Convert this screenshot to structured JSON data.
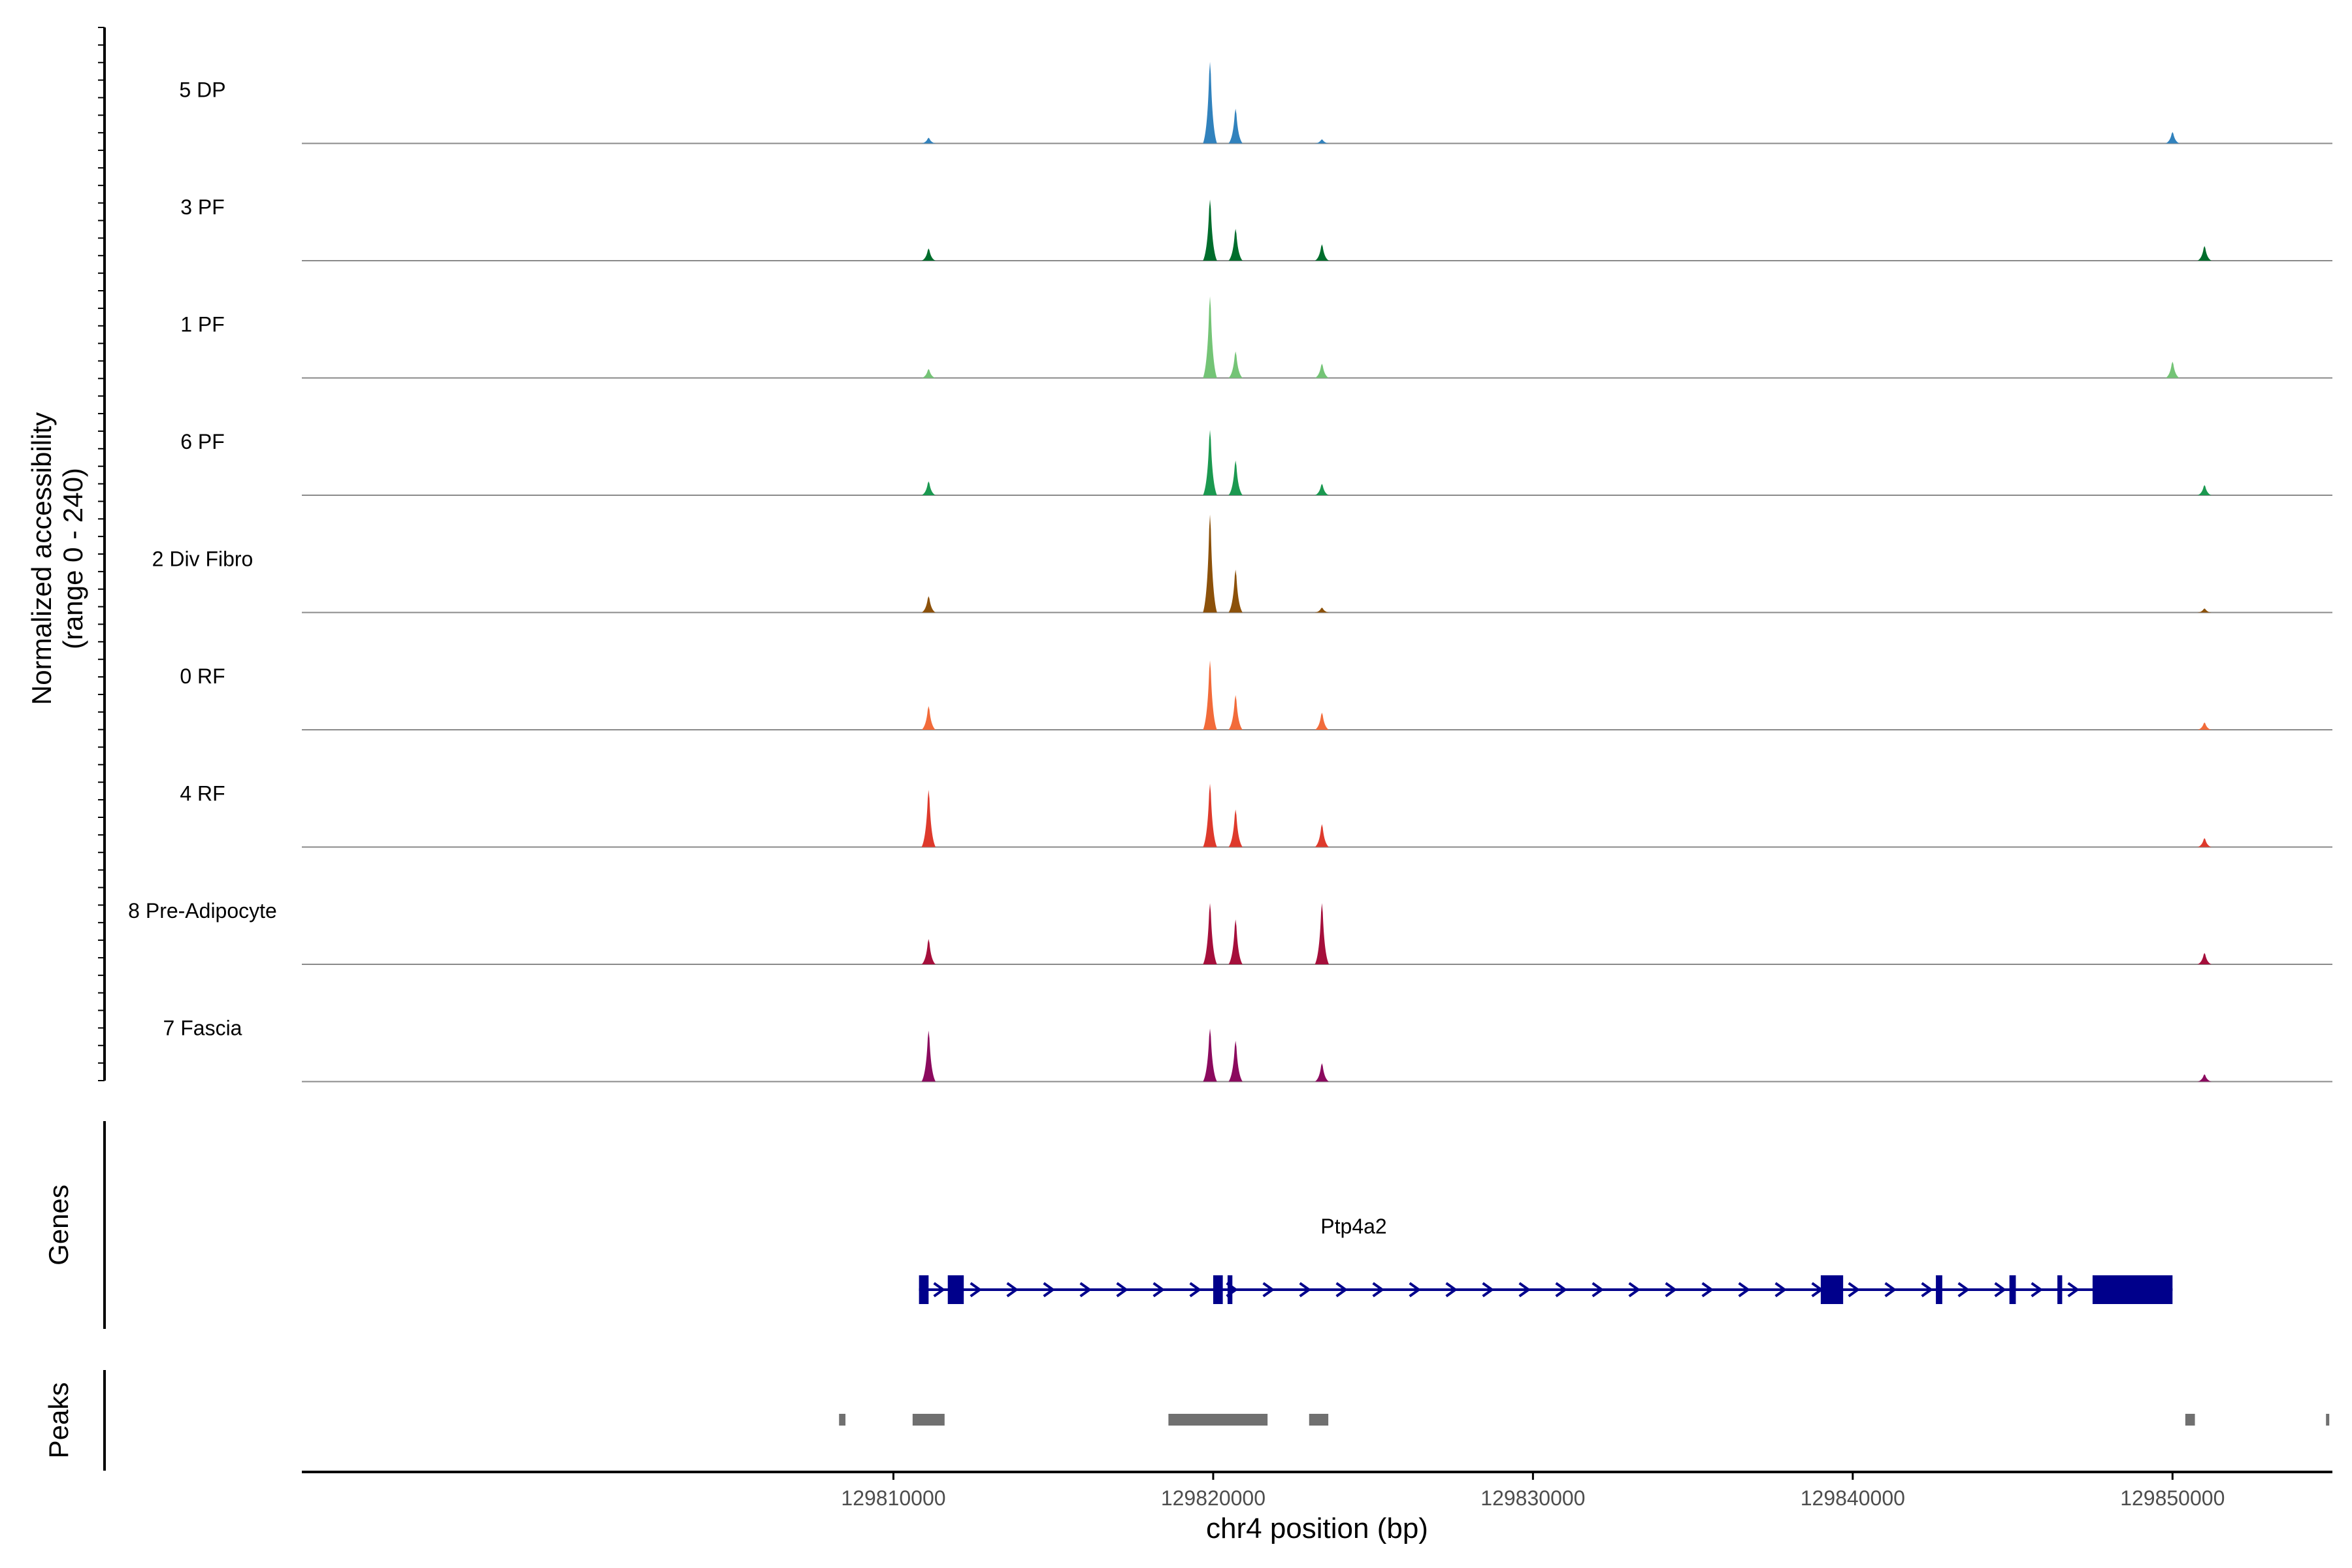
{
  "chart_data": {
    "type": "area",
    "title": "",
    "y_axis_label_line1": "Normalized accessibility",
    "y_axis_label_line2": "(range 0 - 240)",
    "ylim": [
      0,
      240
    ],
    "xlabel": "chr4 position (bp)",
    "xlim": [
      129791500,
      129855000
    ],
    "x_ticks": [
      {
        "value": 129810000,
        "label": "129810000"
      },
      {
        "value": 129820000,
        "label": "129820000"
      },
      {
        "value": 129830000,
        "label": "129830000"
      },
      {
        "value": 129840000,
        "label": "129840000"
      },
      {
        "value": 129850000,
        "label": "129850000"
      }
    ],
    "tracks": [
      {
        "name": "5 DP",
        "color": "#3182bd",
        "peaks": [
          [
            129811100,
            14
          ],
          [
            129819900,
            200
          ],
          [
            129820700,
            85
          ],
          [
            129823400,
            10
          ],
          [
            129850000,
            28
          ]
        ]
      },
      {
        "name": "3 PF",
        "color": "#006d2c",
        "peaks": [
          [
            129811100,
            30
          ],
          [
            129819900,
            150
          ],
          [
            129820700,
            78
          ],
          [
            129823400,
            40
          ],
          [
            129851000,
            36
          ]
        ]
      },
      {
        "name": "1 PF",
        "color": "#74c476",
        "peaks": [
          [
            129811100,
            22
          ],
          [
            129819900,
            200
          ],
          [
            129820700,
            65
          ],
          [
            129823400,
            35
          ],
          [
            129850000,
            40
          ]
        ]
      },
      {
        "name": "6 PF",
        "color": "#1b9950",
        "peaks": [
          [
            129811100,
            34
          ],
          [
            129819900,
            160
          ],
          [
            129820700,
            85
          ],
          [
            129823400,
            28
          ],
          [
            129851000,
            25
          ]
        ]
      },
      {
        "name": "2 Div Fibro",
        "color": "#8c510a",
        "peaks": [
          [
            129811100,
            40
          ],
          [
            129819900,
            240
          ],
          [
            129820700,
            105
          ],
          [
            129823400,
            12
          ],
          [
            129851000,
            10
          ]
        ]
      },
      {
        "name": "0 RF",
        "color": "#f26b3a",
        "peaks": [
          [
            129811100,
            58
          ],
          [
            129819900,
            170
          ],
          [
            129820700,
            85
          ],
          [
            129823400,
            42
          ],
          [
            129851000,
            18
          ]
        ]
      },
      {
        "name": "4 RF",
        "color": "#de3a2c",
        "peaks": [
          [
            129811100,
            140
          ],
          [
            129819900,
            155
          ],
          [
            129820700,
            92
          ],
          [
            129823400,
            56
          ],
          [
            129851000,
            22
          ]
        ]
      },
      {
        "name": "8 Pre-Adipocyte",
        "color": "#a50f3b",
        "peaks": [
          [
            129811100,
            62
          ],
          [
            129819900,
            150
          ],
          [
            129820700,
            110
          ],
          [
            129823400,
            150
          ],
          [
            129851000,
            28
          ]
        ]
      },
      {
        "name": "7 Fascia",
        "color": "#8b0a5e",
        "peaks": [
          [
            129811100,
            125
          ],
          [
            129819900,
            130
          ],
          [
            129820700,
            100
          ],
          [
            129823400,
            45
          ],
          [
            129851000,
            18
          ]
        ]
      }
    ],
    "genes_label": "Genes",
    "gene": {
      "name": "Ptp4a2",
      "start": 129810800,
      "end": 129850000,
      "strand": "+",
      "exons": [
        [
          129810800,
          129811100
        ],
        [
          129811700,
          129812200
        ],
        [
          129820000,
          129820300
        ],
        [
          129820450,
          129820600
        ],
        [
          129839000,
          129839700
        ],
        [
          129842600,
          129842800
        ],
        [
          129844900,
          129845100
        ],
        [
          129846400,
          129846550
        ],
        [
          129847500,
          129850000
        ]
      ]
    },
    "peaks_label": "Peaks",
    "peak_regions": [
      [
        129808300,
        129808500
      ],
      [
        129810600,
        129811600
      ],
      [
        129818600,
        129821700
      ],
      [
        129823000,
        129823600
      ],
      [
        129850400,
        129850700
      ],
      [
        129854800,
        129854900
      ]
    ]
  }
}
